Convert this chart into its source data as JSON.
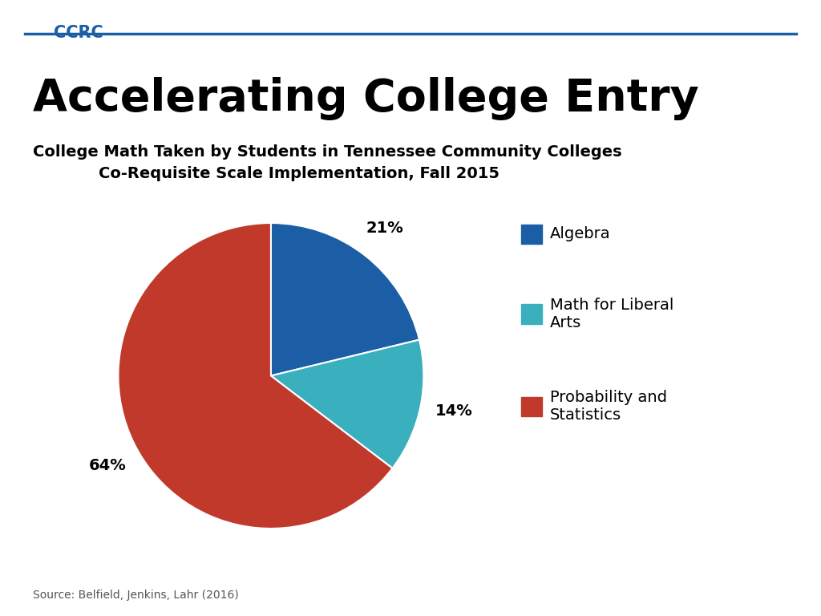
{
  "title_main": "Accelerating College Entry",
  "subtitle_line1": "College Math Taken by Students in Tennessee Community Colleges",
  "subtitle_line2": "Co-Requisite Scale Implementation, Fall 2015",
  "ccrc_label": "CCRC",
  "source_text": "Source: Belfield, Jenkins, Lahr (2016)",
  "slices": [
    21,
    14,
    64
  ],
  "colors": [
    "#1B5EA6",
    "#3AAFBE",
    "#C0392B"
  ],
  "pct_labels": [
    "21%",
    "14%",
    "64%"
  ],
  "legend_labels": [
    "Algebra",
    "Math for Liberal\nArts",
    "Probability and\nStatistics"
  ],
  "background_color": "#FFFFFF",
  "title_color": "#000000",
  "ccrc_color": "#1B5EA6",
  "header_line_color": "#1B5EA6",
  "startangle": 90
}
